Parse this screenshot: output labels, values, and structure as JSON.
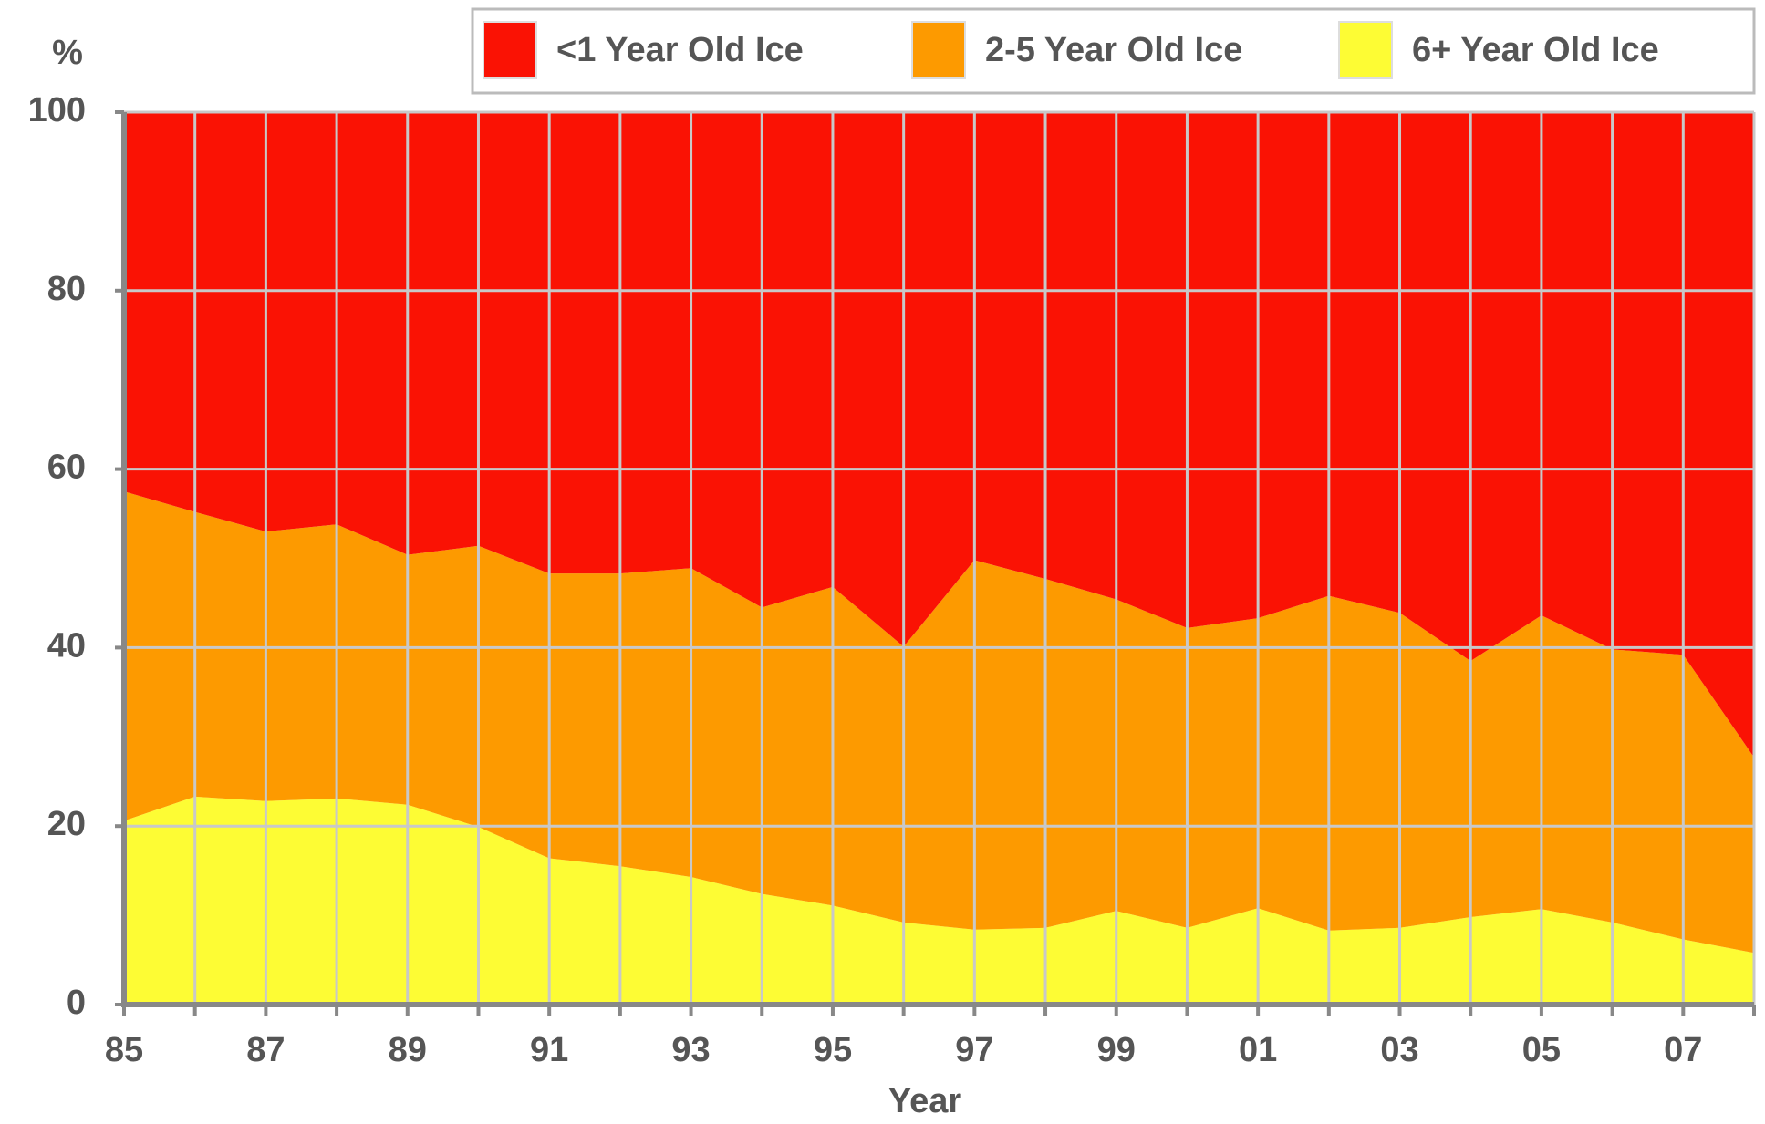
{
  "chart_data": {
    "type": "stacked_area",
    "y_label": "%",
    "x_label": "Year",
    "categories": [
      "85",
      null,
      "87",
      null,
      "89",
      null,
      "91",
      null,
      "93",
      null,
      "95",
      null,
      "97",
      null,
      "99",
      null,
      "01",
      null,
      "03",
      null,
      "05",
      null,
      "07",
      null
    ],
    "series": [
      {
        "name": "<1 Year Old Ice",
        "color": "#fa1204",
        "values": [
          42.5,
          44.8,
          47.0,
          46.2,
          49.6,
          48.6,
          51.7,
          51.7,
          51.1,
          55.5,
          53.2,
          59.9,
          50.2,
          52.3,
          54.6,
          57.8,
          56.7,
          54.2,
          56.1,
          61.5,
          56.4,
          60.2,
          60.8,
          72.3
        ]
      },
      {
        "name": "2-5 Year Old Ice",
        "color": "#fd9a00",
        "values": [
          36.9,
          31.9,
          30.2,
          30.7,
          28.0,
          31.5,
          31.9,
          32.8,
          34.6,
          32.1,
          35.7,
          30.9,
          41.4,
          39.1,
          34.9,
          33.6,
          32.5,
          37.5,
          35.3,
          28.7,
          32.9,
          30.6,
          31.9,
          21.9
        ]
      },
      {
        "name": "6+ Year Old Ice",
        "color": "#fdfc34",
        "values": [
          20.6,
          23.3,
          22.8,
          23.1,
          22.4,
          19.9,
          16.4,
          15.5,
          14.3,
          12.4,
          11.1,
          9.2,
          8.4,
          8.6,
          10.5,
          8.6,
          10.8,
          8.3,
          8.6,
          9.8,
          10.7,
          9.2,
          7.3,
          5.8
        ]
      }
    ],
    "ylim": [
      0,
      100
    ],
    "yticks": [
      0,
      20,
      40,
      60,
      80,
      100
    ],
    "grid": true
  }
}
